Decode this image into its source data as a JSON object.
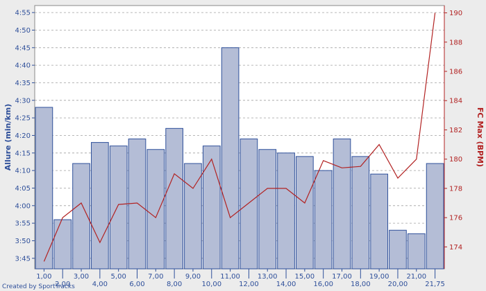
{
  "chart_data": {
    "type": "bar",
    "x_tick_labels": [
      "1,00",
      "2,00",
      "3,00",
      "4,00",
      "5,00",
      "6,00",
      "7,00",
      "8,00",
      "9,00",
      "10,00",
      "11,00",
      "12,00",
      "13,00",
      "14,00",
      "15,00",
      "16,00",
      "17,00",
      "18,00",
      "19,00",
      "20,00",
      "21,00",
      "21,75"
    ],
    "y_left": {
      "label": "Allure (min/km)",
      "ticks": [
        "3:45",
        "3:50",
        "3:55",
        "4:00",
        "4:05",
        "4:10",
        "4:15",
        "4:20",
        "4:25",
        "4:30",
        "4:35",
        "4:40",
        "4:45",
        "4:50",
        "4:55"
      ],
      "range_seconds": [
        222,
        297
      ],
      "color": "#2e4f9a"
    },
    "y_right": {
      "label": "FC Max (BPM)",
      "ticks": [
        "174",
        "176",
        "178",
        "180",
        "182",
        "184",
        "186",
        "188",
        "190"
      ],
      "range": [
        172.5,
        190.5
      ],
      "color": "#b22222"
    },
    "series": [
      {
        "kind": "bar",
        "axis": "left",
        "unit": "seconds per km",
        "color": "#b4bdd6",
        "edge_color": "#2e4f9a",
        "values": [
          268,
          236,
          252,
          258,
          257,
          259,
          256,
          262,
          252,
          257,
          285,
          259,
          256,
          255,
          254,
          250,
          259,
          254,
          249,
          233,
          232,
          252
        ]
      },
      {
        "kind": "line",
        "axis": "right",
        "color": "#b22222",
        "values": [
          173,
          176,
          177,
          174.3,
          176.9,
          177,
          176,
          179,
          178,
          180,
          176,
          177,
          178,
          178,
          177,
          179.9,
          179.4,
          179.5,
          181,
          178.7,
          180,
          190
        ]
      }
    ],
    "grid": "horizontal dashed",
    "legend": "none"
  },
  "credit": "Created by SportTracks"
}
